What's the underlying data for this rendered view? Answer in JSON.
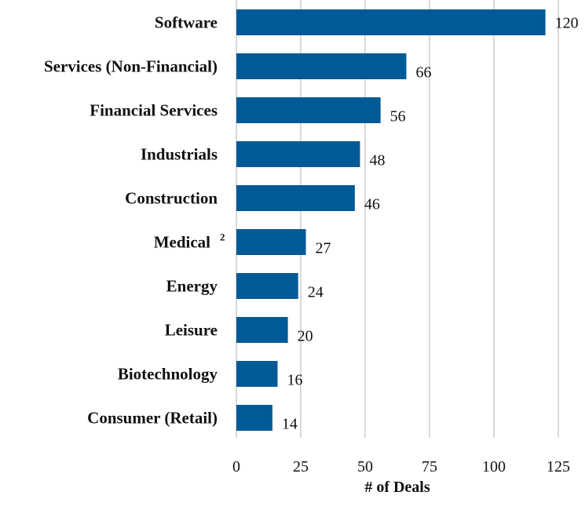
{
  "chart_data": {
    "type": "bar",
    "orientation": "horizontal",
    "title": "",
    "xlabel": "# of Deals",
    "ylabel": "",
    "categories": [
      "Software",
      "Services (Non-Financial)",
      "Financial Services",
      "Industrials",
      "Construction",
      "Medical",
      "Energy",
      "Leisure",
      "Biotechnology",
      "Consumer (Retail)"
    ],
    "category_superscripts": [
      "",
      "",
      "",
      "",
      "",
      "2",
      "",
      "",
      "",
      ""
    ],
    "values": [
      120,
      66,
      56,
      48,
      46,
      27,
      24,
      20,
      16,
      14
    ],
    "xlim": [
      0,
      125
    ],
    "xticks": [
      0,
      25,
      50,
      75,
      100,
      125
    ],
    "grid": true,
    "legend": "none",
    "bar_color": "#005A96",
    "grid_color": "#d9d9d9"
  }
}
